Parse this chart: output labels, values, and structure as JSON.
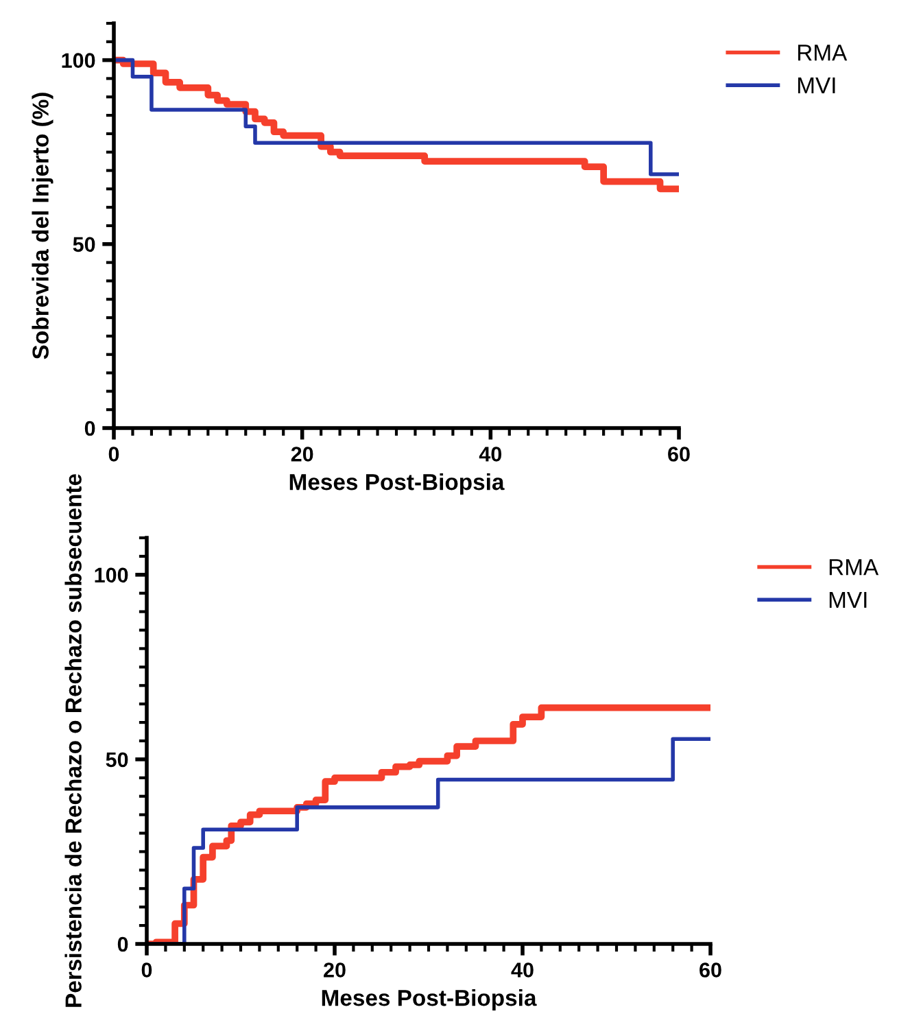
{
  "chart_data": [
    {
      "type": "step",
      "xlabel": "Meses Post-Biopsia",
      "ylabel": "Sobrevida del Injerto (%)",
      "xlim": [
        0,
        60
      ],
      "xticks": [
        0,
        20,
        40,
        60
      ],
      "ylim": [
        0,
        110
      ],
      "yticks": [
        0,
        50,
        100
      ],
      "legend": "top right",
      "grid": false,
      "line_style": "solid",
      "series": [
        {
          "name": "RMA",
          "color": "#f5402c",
          "x": [
            0,
            1,
            4.2,
            5.5,
            7,
            10,
            11,
            12,
            14,
            15,
            16,
            17,
            18,
            22,
            23,
            24,
            33,
            50,
            52,
            58,
            60
          ],
          "values": [
            100,
            99,
            96.5,
            94,
            92.5,
            90.5,
            89,
            88,
            86,
            84,
            83,
            80.5,
            79.5,
            76.5,
            75,
            74,
            72.5,
            71,
            67,
            65,
            65
          ]
        },
        {
          "name": "MVI",
          "color": "#2438a8",
          "x": [
            0,
            2,
            4,
            14,
            15,
            57,
            60
          ],
          "values": [
            100,
            95.5,
            86.5,
            82,
            77.5,
            69,
            69
          ]
        }
      ]
    },
    {
      "type": "step",
      "xlabel": "Meses Post-Biopsia",
      "ylabel": "Persistencia de Rechazo o Rechazo subsecuente",
      "xlim": [
        0,
        60
      ],
      "xticks": [
        0,
        20,
        40,
        60
      ],
      "ylim": [
        0,
        110
      ],
      "yticks": [
        0,
        50,
        100
      ],
      "legend": "top right",
      "grid": false,
      "line_style": "solid",
      "series": [
        {
          "name": "RMA",
          "color": "#f5402c",
          "x": [
            0,
            1,
            3,
            4,
            5,
            6,
            7,
            8.5,
            9,
            10,
            11,
            12,
            16,
            17,
            18,
            19,
            20,
            25,
            26.5,
            28,
            29,
            32,
            33,
            35,
            39,
            40,
            42,
            60
          ],
          "values": [
            0,
            0.5,
            5.5,
            10.5,
            17.5,
            23.5,
            26.5,
            28,
            32,
            33,
            35,
            36,
            37,
            38,
            39,
            44,
            45,
            46.5,
            48,
            48.5,
            49.5,
            51,
            53.5,
            55,
            59.5,
            61.5,
            64,
            64
          ]
        },
        {
          "name": "MVI",
          "color": "#2438a8",
          "x": [
            0,
            4,
            5,
            6,
            16,
            31,
            56,
            60
          ],
          "values": [
            0,
            15,
            26,
            31,
            37,
            44.5,
            55.5,
            55.5
          ]
        }
      ]
    }
  ]
}
